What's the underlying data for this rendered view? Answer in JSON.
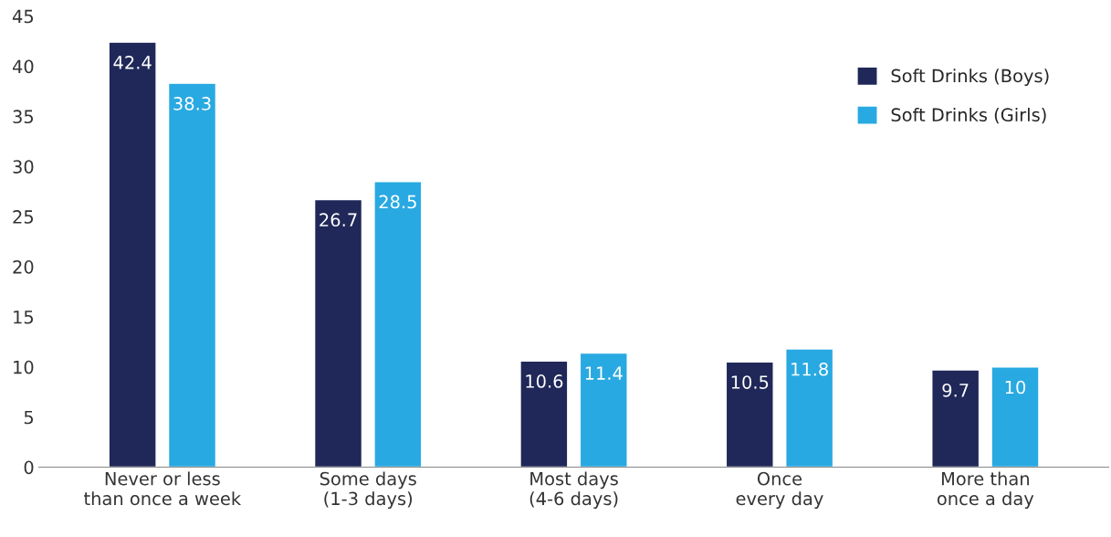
{
  "chart_data": {
    "type": "bar",
    "categories": [
      "Never or less\nthan once a week",
      "Some days\n(1-3 days)",
      "Most days\n(4-6 days)",
      "Once\nevery day",
      "More than\nonce a day"
    ],
    "series": [
      {
        "name": "Soft Drinks (Boys)",
        "color": "#1f2858",
        "values": [
          42.4,
          26.7,
          10.6,
          10.5,
          9.7
        ]
      },
      {
        "name": "Soft Drinks (Girls)",
        "color": "#29a9e1",
        "values": [
          38.3,
          28.5,
          11.4,
          11.8,
          10
        ]
      }
    ],
    "ylim": [
      0,
      45
    ],
    "yticks": [
      0,
      5,
      10,
      15,
      20,
      25,
      30,
      35,
      40,
      45
    ],
    "data_labels": true,
    "legend": "top right",
    "grid": false
  }
}
